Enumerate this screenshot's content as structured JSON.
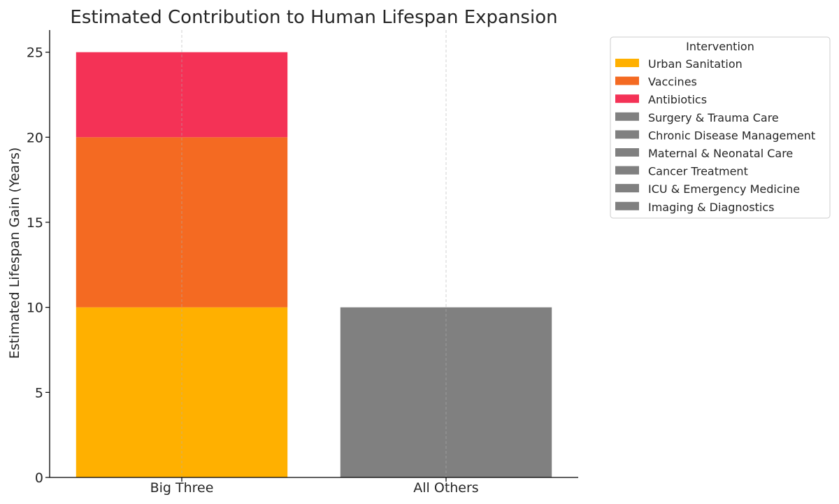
{
  "chart_data": {
    "type": "bar",
    "stacked": true,
    "title": "Estimated Contribution to Human Lifespan Expansion",
    "xlabel": "",
    "ylabel": "Estimated Lifespan Gain (Years)",
    "ylim": [
      0,
      26.3
    ],
    "yticks": [
      0,
      5,
      10,
      15,
      20,
      25
    ],
    "categories": [
      "Big Three",
      "All Others"
    ],
    "grid": "x-dashed",
    "legend": {
      "title": "Intervention",
      "placement": "outside-top-right"
    },
    "series": [
      {
        "name": "Urban Sanitation",
        "color": "#FFB000",
        "values": [
          10,
          0
        ]
      },
      {
        "name": "Vaccines",
        "color": "#F46A22",
        "values": [
          10,
          0
        ]
      },
      {
        "name": "Antibiotics",
        "color": "#F43256",
        "values": [
          5,
          0
        ]
      },
      {
        "name": "Surgery & Trauma Care",
        "color": "#808080",
        "values": [
          0,
          0
        ]
      },
      {
        "name": "Chronic Disease Management",
        "color": "#808080",
        "values": [
          0,
          0
        ]
      },
      {
        "name": "Maternal & Neonatal Care",
        "color": "#808080",
        "values": [
          0,
          0
        ]
      },
      {
        "name": "Cancer Treatment",
        "color": "#808080",
        "values": [
          0,
          0
        ]
      },
      {
        "name": "ICU & Emergency Medicine",
        "color": "#808080",
        "values": [
          0,
          0
        ]
      },
      {
        "name": "Imaging & Diagnostics",
        "color": "#808080",
        "values": [
          0,
          10
        ]
      }
    ]
  }
}
